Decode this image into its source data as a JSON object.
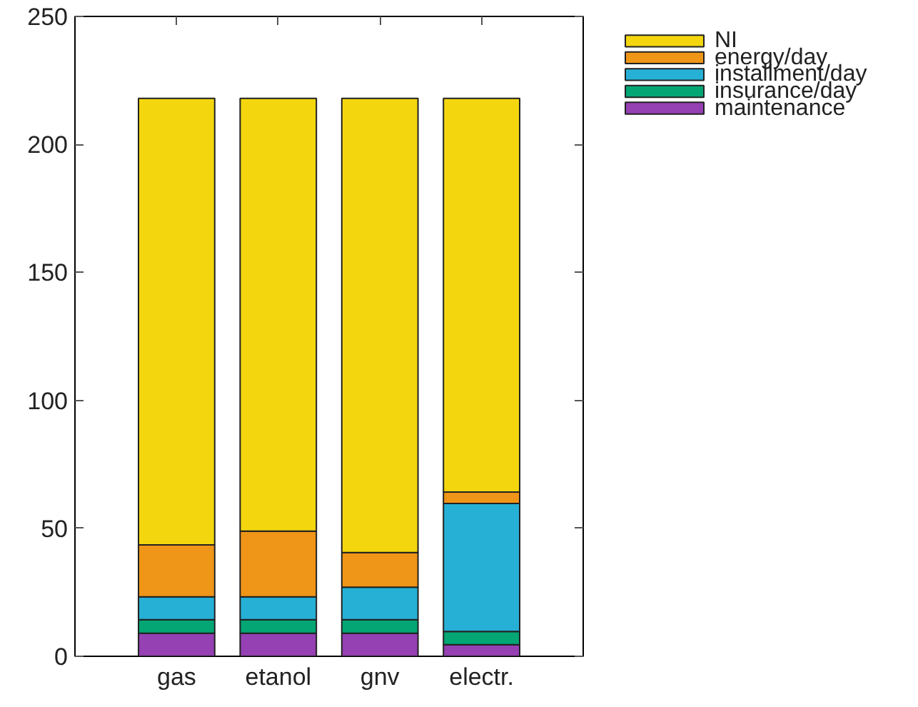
{
  "chart_data": {
    "type": "bar",
    "stacked": true,
    "categories": [
      "gas",
      "etanol",
      "gnv",
      "electr."
    ],
    "series": [
      {
        "name": "maintenance",
        "color": "#9540b3",
        "values": [
          9,
          9,
          9,
          4.5
        ]
      },
      {
        "name": "insurance/day",
        "color": "#04a674",
        "values": [
          5.3,
          5.3,
          5.3,
          5.2
        ]
      },
      {
        "name": "installment/day",
        "color": "#26b0d6",
        "values": [
          8.9,
          8.9,
          12.7,
          50
        ]
      },
      {
        "name": "energy/day",
        "color": "#ef9518",
        "values": [
          20.3,
          25.7,
          13.5,
          4.5
        ]
      },
      {
        "name": "NI",
        "color": "#f4d60f",
        "values": [
          174.5,
          169.1,
          177.5,
          153.8
        ]
      }
    ],
    "ylim": [
      0,
      250
    ],
    "yticks": [
      0,
      50,
      100,
      150,
      200,
      250
    ],
    "grid": false,
    "legend": "top right"
  }
}
